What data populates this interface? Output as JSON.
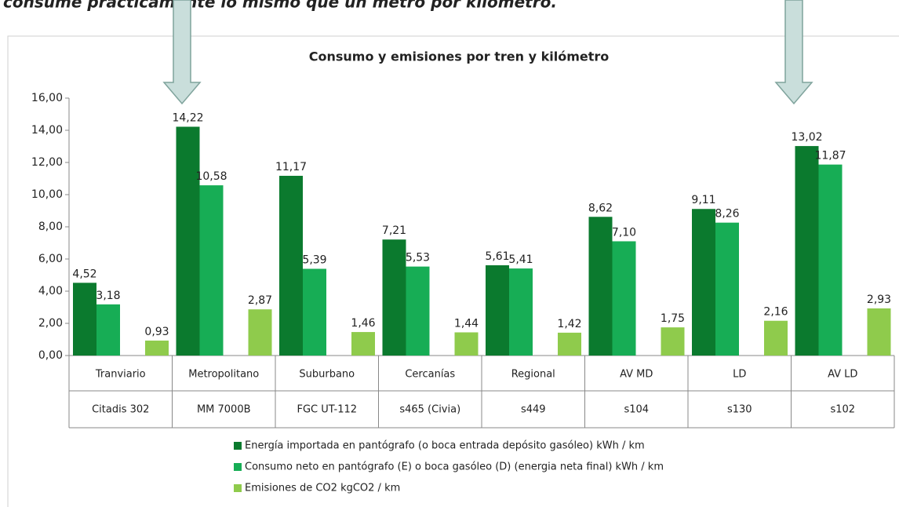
{
  "header_text": "consume prácticamente lo mismo que un metro por kilómetro.",
  "chart_data": {
    "type": "bar",
    "title": "Consumo y emisiones por tren y kilómetro",
    "categories": [
      "Tranviario",
      "Metropolitano",
      "Suburbano",
      "Cercanías",
      "Regional",
      "AV MD",
      "LD",
      "AV LD"
    ],
    "sub_categories": [
      "Citadis 302",
      "MM 7000B",
      "FGC UT-112",
      "s465 (Civia)",
      "s449",
      "s104",
      "s130",
      "s102"
    ],
    "series": [
      {
        "name": "Energía importada en pantógrafo (o boca entrada depósito gasóleo) kWh / km",
        "color": "#0b7a2e",
        "values": [
          4.52,
          14.22,
          11.17,
          7.21,
          5.61,
          8.62,
          9.11,
          13.02
        ],
        "value_labels": [
          "4,52",
          "14,22",
          "11,17",
          "7,21",
          "5,61",
          "8,62",
          "9,11",
          "13,02"
        ]
      },
      {
        "name": "Consumo neto en pantógrafo (E) o boca gasóleo (D) (energia neta final) kWh / km",
        "color": "#17ad55",
        "values": [
          3.18,
          10.58,
          5.39,
          5.53,
          5.41,
          7.1,
          8.26,
          11.87
        ],
        "value_labels": [
          "3,18",
          "10,58",
          "5,39",
          "5,53",
          "5,41",
          "7,10",
          "8,26",
          "11,87"
        ]
      },
      {
        "name": "Emisiones de CO2 kgCO2 / km",
        "color": "#8fcb4c",
        "values": [
          0.93,
          2.87,
          1.46,
          1.44,
          1.42,
          1.75,
          2.16,
          2.93
        ],
        "value_labels": [
          "0,93",
          "2,87",
          "1,46",
          "1,44",
          "1,42",
          "1,75",
          "2,16",
          "2,93"
        ]
      }
    ],
    "ylim": [
      0,
      16
    ],
    "yticks": [
      {
        "value": 0,
        "label": "0,00"
      },
      {
        "value": 2,
        "label": "2,00"
      },
      {
        "value": 4,
        "label": "4,00"
      },
      {
        "value": 6,
        "label": "6,00"
      },
      {
        "value": 8,
        "label": "8,00"
      },
      {
        "value": 10,
        "label": "10,00"
      },
      {
        "value": 12,
        "label": "12,00"
      },
      {
        "value": 14,
        "label": "14,00"
      },
      {
        "value": 16,
        "label": "16,00"
      }
    ],
    "grid": false
  }
}
